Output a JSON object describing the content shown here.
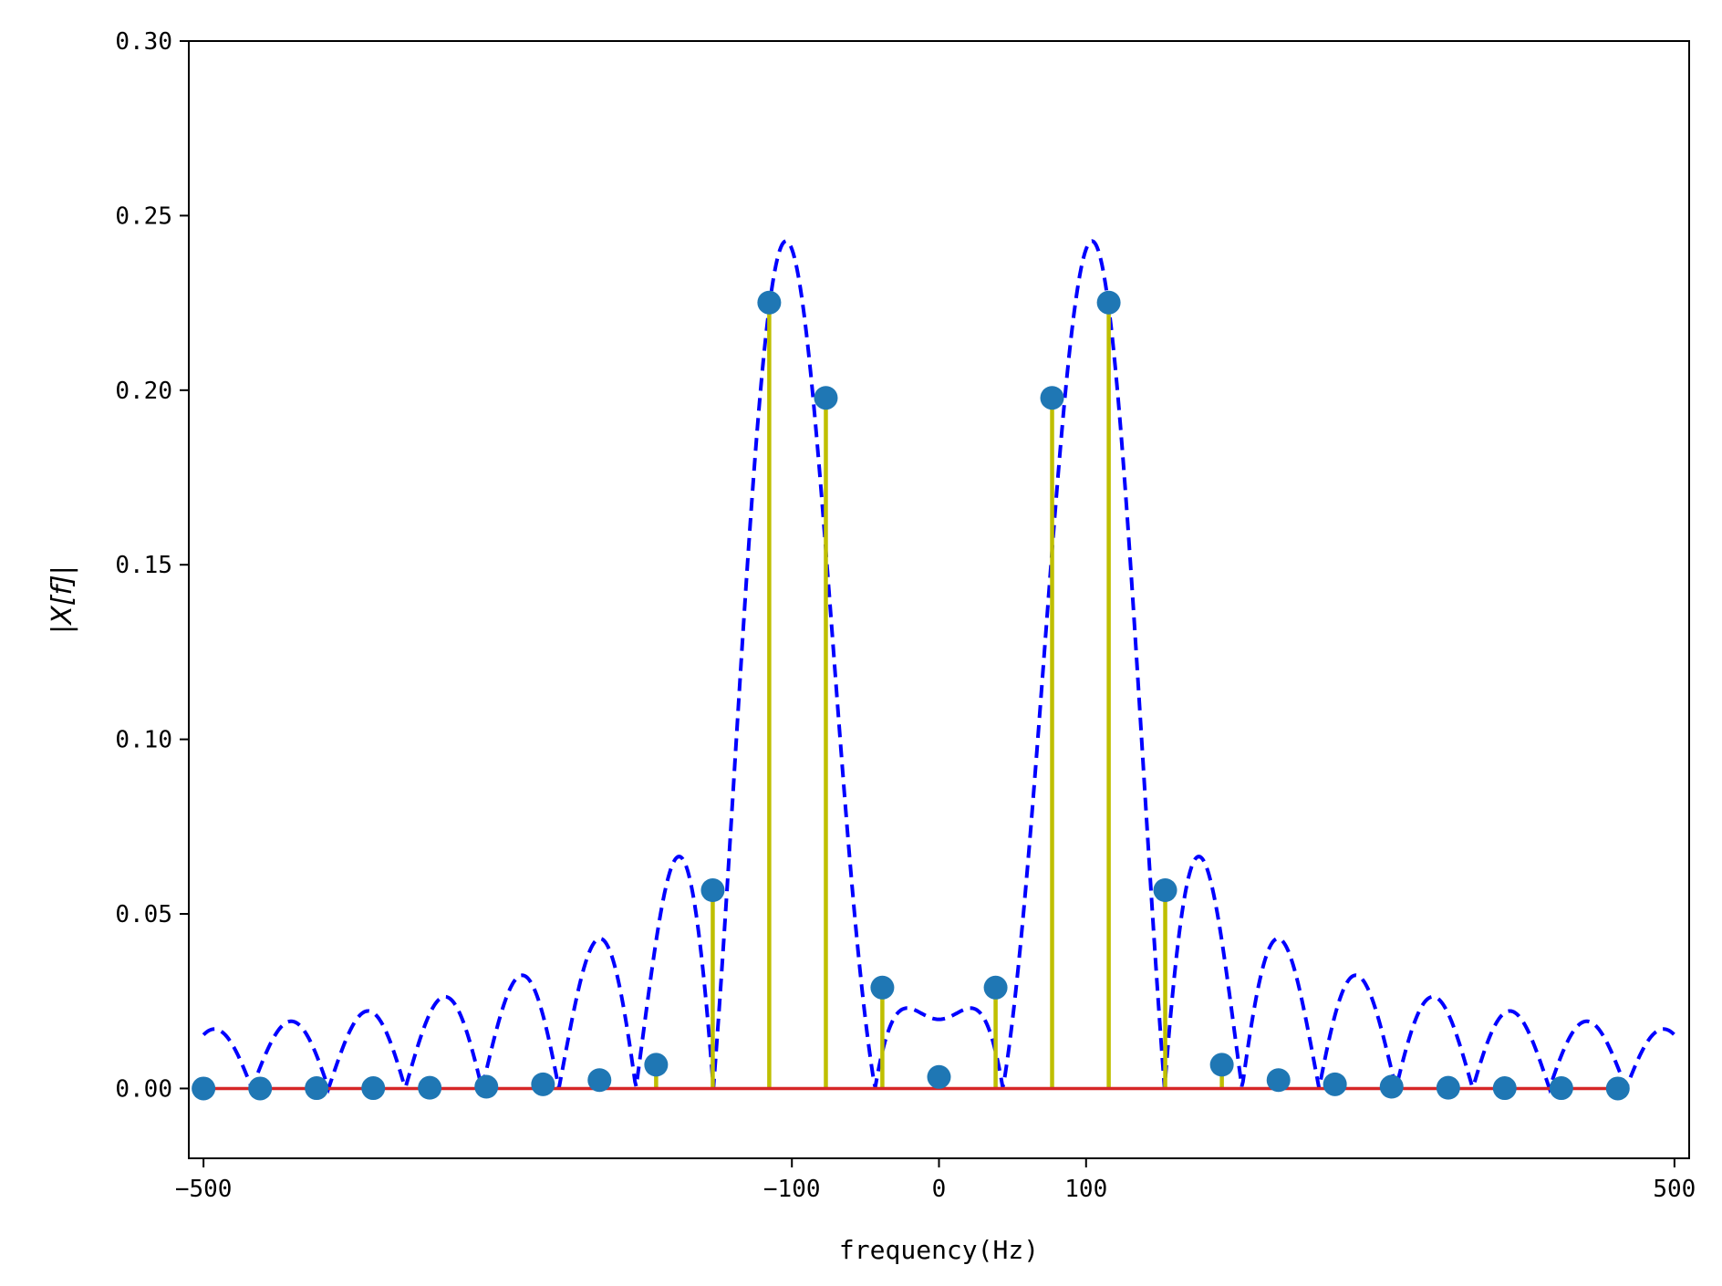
{
  "chart_data": {
    "type": "stem",
    "xlabel": "frequency(Hz)",
    "ylabel": "|X[f]|",
    "xlim": [
      -510,
      510
    ],
    "ylim": [
      -0.02,
      0.3
    ],
    "xticks": [
      -500,
      -100,
      0,
      100,
      500
    ],
    "xtick_labels": [
      "−500",
      "−100",
      "0",
      "100",
      "500"
    ],
    "yticks": [
      0.0,
      0.05,
      0.1,
      0.15,
      0.2,
      0.25,
      0.3
    ],
    "ytick_labels": [
      "0.00",
      "0.05",
      "0.10",
      "0.15",
      "0.20",
      "0.25",
      "0.30"
    ],
    "grid": false,
    "legend": "none",
    "stems": {
      "x": [
        -500,
        -461.5,
        -423.1,
        -384.6,
        -346.2,
        -307.7,
        -269.2,
        -230.8,
        -192.3,
        -153.8,
        -115.4,
        -76.9,
        -38.5,
        0,
        38.5,
        76.9,
        115.4,
        153.8,
        192.3,
        230.8,
        269.2,
        307.7,
        346.2,
        384.6,
        423.1,
        461.5
      ],
      "y": [
        0.0,
        0.0,
        0.0001,
        0.0001,
        0.0002,
        0.0005,
        0.0012,
        0.0024,
        0.0068,
        0.0568,
        0.2251,
        0.1978,
        0.0289,
        0.0033,
        0.0289,
        0.1978,
        0.2251,
        0.0568,
        0.0068,
        0.0024,
        0.0012,
        0.0005,
        0.0002,
        0.0001,
        0.0001,
        0.0
      ],
      "stem_color": "#bfbf00",
      "marker_color": "#1f77b4",
      "baseline_color": "#d62728"
    },
    "curve": {
      "style": "dashed",
      "color": "#0000ff",
      "x_range": [
        -500,
        500
      ],
      "peaks": [
        -100,
        100
      ],
      "peak_value": 0.25
    }
  }
}
